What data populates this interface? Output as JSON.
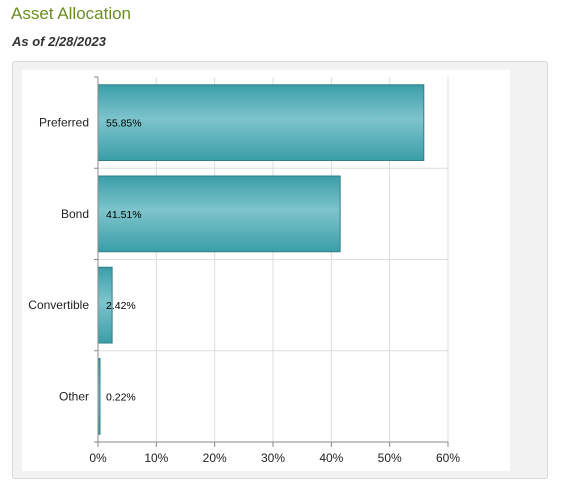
{
  "header": {
    "title": "Asset Allocation",
    "as_of": "As of 2/28/2023"
  },
  "colors": {
    "bar_dark": "#3a9ea8",
    "bar_light": "#7ec4cc",
    "title": "#6b8e23"
  },
  "chart_data": {
    "type": "bar",
    "orientation": "horizontal",
    "categories": [
      "Preferred",
      "Bond",
      "Convertible",
      "Other"
    ],
    "values": [
      55.85,
      41.51,
      2.42,
      0.22
    ],
    "data_labels": [
      "55.85%",
      "41.51%",
      "2.42%",
      "0.22%"
    ],
    "xlim": [
      0,
      60
    ],
    "xticks": [
      0,
      10,
      20,
      30,
      40,
      50,
      60
    ],
    "xtick_labels": [
      "0%",
      "10%",
      "20%",
      "30%",
      "40%",
      "50%",
      "60%"
    ],
    "grid": true,
    "legend": "none"
  }
}
